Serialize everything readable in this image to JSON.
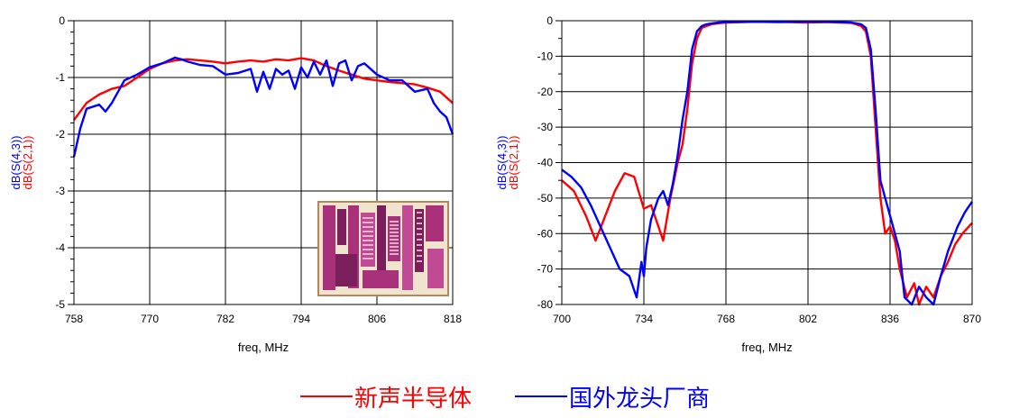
{
  "chart_data": [
    {
      "type": "line",
      "title": "",
      "xlabel": "freq, MHz",
      "ylabel_series": [
        "dB(S(4,3))",
        "dB(S(2,1))"
      ],
      "xlim": [
        758,
        818
      ],
      "ylim": [
        -5,
        0
      ],
      "xticks": [
        758,
        770,
        782,
        794,
        806,
        818
      ],
      "yticks": [
        0,
        -1,
        -2,
        -3,
        -4,
        -5
      ],
      "grid": true,
      "inset_image": "filter-chip-die-photo",
      "series": [
        {
          "name": "dB(S(2,1))",
          "color": "#ff0000",
          "x": [
            758,
            760,
            762,
            764,
            766,
            768,
            770,
            772,
            774,
            776,
            778,
            780,
            782,
            784,
            786,
            788,
            790,
            792,
            794,
            796,
            798,
            800,
            802,
            804,
            806,
            808,
            810,
            812,
            814,
            816,
            818
          ],
          "y": [
            -1.75,
            -1.45,
            -1.3,
            -1.2,
            -1.15,
            -1.0,
            -0.85,
            -0.75,
            -0.7,
            -0.68,
            -0.7,
            -0.72,
            -0.75,
            -0.72,
            -0.7,
            -0.72,
            -0.68,
            -0.7,
            -0.66,
            -0.7,
            -0.8,
            -0.88,
            -0.95,
            -1.02,
            -1.05,
            -1.08,
            -1.1,
            -1.12,
            -1.18,
            -1.25,
            -1.45
          ]
        },
        {
          "name": "dB(S(4,3))",
          "color": "#0000ff",
          "x": [
            758,
            759,
            760,
            762,
            763,
            764,
            766,
            768,
            770,
            772,
            774,
            775,
            776,
            778,
            780,
            782,
            784,
            786,
            787,
            788,
            789,
            790,
            791,
            792,
            793,
            794,
            795,
            796,
            797,
            798,
            799,
            800,
            801,
            802,
            803,
            804,
            806,
            808,
            810,
            812,
            814,
            815,
            816,
            817,
            818
          ],
          "y": [
            -2.4,
            -1.9,
            -1.55,
            -1.48,
            -1.6,
            -1.45,
            -1.05,
            -0.95,
            -0.82,
            -0.75,
            -0.65,
            -0.68,
            -0.72,
            -0.78,
            -0.8,
            -0.95,
            -0.92,
            -0.85,
            -1.25,
            -0.9,
            -1.2,
            -0.85,
            -0.95,
            -0.88,
            -1.2,
            -0.82,
            -1.0,
            -0.72,
            -0.95,
            -0.7,
            -1.15,
            -0.75,
            -0.7,
            -1.05,
            -0.8,
            -0.75,
            -0.95,
            -1.05,
            -1.05,
            -1.25,
            -1.2,
            -1.45,
            -1.6,
            -1.7,
            -2.0
          ]
        }
      ]
    },
    {
      "type": "line",
      "title": "",
      "xlabel": "freq, MHz",
      "ylabel_series": [
        "dB(S(4,3))",
        "dB(S(2,1))"
      ],
      "xlim": [
        700,
        870
      ],
      "ylim": [
        -80,
        0
      ],
      "xticks": [
        700,
        734,
        768,
        802,
        836,
        870
      ],
      "yticks": [
        0,
        -10,
        -20,
        -30,
        -40,
        -50,
        -60,
        -70,
        -80
      ],
      "grid": true,
      "series": [
        {
          "name": "dB(S(2,1))",
          "color": "#ff0000",
          "x": [
            700,
            705,
            710,
            714,
            718,
            722,
            726,
            730,
            734,
            737,
            740,
            742,
            745,
            748,
            750,
            752,
            754,
            756,
            758,
            760,
            762,
            765,
            768,
            780,
            790,
            800,
            810,
            820,
            824,
            826,
            828,
            830,
            832,
            834,
            836,
            838,
            840,
            843,
            846,
            848,
            851,
            854,
            857,
            860,
            863,
            866,
            870
          ],
          "y": [
            -45,
            -48,
            -55,
            -62,
            -55,
            -48,
            -43,
            -44,
            -53,
            -52,
            -58,
            -62,
            -50,
            -40,
            -35,
            -25,
            -12,
            -5,
            -2,
            -1.5,
            -1,
            -0.7,
            -0.5,
            -0.3,
            -0.3,
            -0.5,
            -0.4,
            -0.6,
            -1.5,
            -3,
            -10,
            -30,
            -50,
            -60,
            -58,
            -62,
            -70,
            -78,
            -74,
            -80,
            -75,
            -78,
            -72,
            -68,
            -63,
            -60,
            -57
          ]
        },
        {
          "name": "dB(S(4,3))",
          "color": "#0000ff",
          "x": [
            700,
            704,
            708,
            712,
            716,
            720,
            724,
            728,
            731,
            733,
            734,
            735,
            737,
            740,
            742,
            744,
            746,
            748,
            750,
            752,
            754,
            756,
            758,
            760,
            762,
            765,
            768,
            780,
            790,
            800,
            810,
            820,
            824,
            826,
            828,
            830,
            832,
            834,
            836,
            838,
            840,
            842,
            845,
            848,
            851,
            854,
            857,
            860,
            864,
            867,
            870
          ],
          "y": [
            -42,
            -44,
            -47,
            -52,
            -58,
            -64,
            -70,
            -72,
            -78,
            -68,
            -72,
            -64,
            -56,
            -50,
            -48,
            -52,
            -46,
            -38,
            -28,
            -20,
            -8,
            -3,
            -1.5,
            -1,
            -0.8,
            -0.5,
            -0.4,
            -0.3,
            -0.4,
            -0.3,
            -0.3,
            -0.5,
            -1,
            -2,
            -8,
            -25,
            -45,
            -50,
            -55,
            -60,
            -65,
            -78,
            -80,
            -75,
            -78,
            -80,
            -72,
            -65,
            -58,
            -54,
            -51
          ]
        }
      ]
    }
  ],
  "legend": [
    {
      "label": "新声半导体",
      "color": "#ff0000"
    },
    {
      "label": "国外龙头厂商",
      "color": "#0000ff"
    }
  ]
}
